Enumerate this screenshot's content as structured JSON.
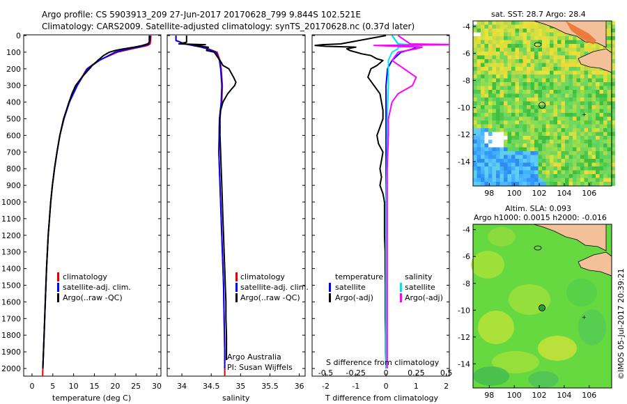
{
  "header": {
    "title_line1": "Argo profile: CS 5903913_209 27-Jun-2017 20170628_799 9.844S 102.521E",
    "title_line2": "Climatology: CARS2009. Satellite-adjusted climatology: synTS_20170628.nc (0.37d later)"
  },
  "colors": {
    "climatology": "#e00000",
    "satellite": "#0000ff",
    "argo": "#000000",
    "satellite_salinity": "#00e5ee",
    "argo_adj_salinity": "#ff00ff",
    "land": "#f4c09a"
  },
  "chart_data": [
    {
      "id": "temperature",
      "type": "line",
      "xlabel": "temperature (deg C)",
      "ylim": [
        2050,
        0
      ],
      "xlim": [
        -2,
        31
      ],
      "xticks": [
        "0",
        "5",
        "10",
        "15",
        "20",
        "25",
        "30"
      ],
      "yticks": [
        "0",
        "100",
        "200",
        "300",
        "400",
        "500",
        "600",
        "700",
        "800",
        "900",
        "1000",
        "1100",
        "1200",
        "1300",
        "1400",
        "1500",
        "1600",
        "1700",
        "1800",
        "1900",
        "2000"
      ],
      "legend": [
        "climatology",
        "satellite-adj. clim.",
        "Argo(..raw -QC)"
      ],
      "series": [
        {
          "name": "climatology",
          "pressure": [
            0,
            30,
            50,
            60,
            70,
            80,
            100,
            150,
            200,
            300,
            400,
            500,
            600,
            700,
            800,
            900,
            1000,
            1200,
            1400,
            1600,
            1800,
            2000,
            2050
          ],
          "values": [
            28.6,
            28.5,
            28.4,
            27.8,
            26,
            24,
            20.5,
            16,
            13.2,
            10.8,
            8.9,
            7.6,
            6.7,
            6,
            5.4,
            4.9,
            4.5,
            3.9,
            3.5,
            3.2,
            2.9,
            2.6,
            2.55
          ]
        },
        {
          "name": "satellite-adj. clim.",
          "pressure": [
            0,
            30,
            50,
            60,
            70,
            80,
            100,
            150,
            200,
            300,
            400,
            500,
            600,
            700,
            800,
            900,
            1000,
            1200,
            1400,
            1600,
            1800,
            2000
          ],
          "values": [
            28.4,
            28.3,
            28.1,
            27.2,
            25.5,
            23.2,
            20,
            16.2,
            13.3,
            10.9,
            9,
            7.7,
            6.7,
            6,
            5.4,
            4.9,
            4.5,
            3.9,
            3.5,
            3.2,
            2.9,
            2.6
          ]
        },
        {
          "name": "Argo(..raw -QC)",
          "pressure": [
            0,
            40,
            50,
            60,
            70,
            80,
            90,
            100,
            120,
            150,
            180,
            200,
            250,
            300,
            350,
            400,
            500,
            600,
            700,
            800,
            900,
            1000,
            1200,
            1400,
            1600,
            1800,
            2000
          ],
          "values": [
            28.2,
            28.2,
            27.8,
            26.5,
            24.5,
            22,
            20,
            18.6,
            17.2,
            15.8,
            14.5,
            13.8,
            12,
            10.5,
            9.6,
            8.9,
            7.6,
            6.7,
            6,
            5.4,
            4.9,
            4.5,
            3.9,
            3.5,
            3.2,
            2.9,
            2.6
          ]
        }
      ]
    },
    {
      "id": "salinity",
      "type": "line",
      "xlabel": "salinity",
      "ylim": [
        2050,
        0
      ],
      "xlim": [
        33.75,
        36.1
      ],
      "xticks": [
        "34",
        "34.5",
        "35",
        "35.5",
        "36"
      ],
      "legend": [
        "climatology",
        "satellite-adj. clim.",
        "Argo(..raw -QC)"
      ],
      "annotation": [
        "Argo Australia",
        "PI: Susan Wijffels"
      ],
      "series": [
        {
          "name": "climatology",
          "pressure": [
            0,
            30,
            50,
            70,
            80,
            100,
            150,
            200,
            300,
            400,
            500,
            700,
            900,
            1100,
            1300,
            1500,
            1700,
            1900,
            2050
          ],
          "values": [
            33.9,
            33.9,
            34.05,
            34.35,
            34.45,
            34.6,
            34.65,
            34.67,
            34.69,
            34.68,
            34.64,
            34.63,
            34.65,
            34.67,
            34.69,
            34.71,
            34.72,
            34.73,
            34.73
          ]
        },
        {
          "name": "satellite-adj. clim.",
          "pressure": [
            0,
            30,
            50,
            70,
            80,
            100,
            150,
            200,
            300,
            400,
            500,
            700,
            900,
            1100,
            1300,
            1500,
            1700,
            1900,
            2000
          ],
          "values": [
            33.9,
            33.9,
            34.05,
            34.33,
            34.43,
            34.58,
            34.64,
            34.66,
            34.68,
            34.67,
            34.64,
            34.63,
            34.65,
            34.67,
            34.69,
            34.71,
            34.72,
            34.73,
            34.73
          ]
        },
        {
          "name": "Argo(..raw -QC)",
          "pressure": [
            0,
            40,
            50,
            55,
            60,
            70,
            90,
            100,
            150,
            180,
            200,
            250,
            280,
            300,
            320,
            350,
            400,
            450,
            500,
            600,
            700,
            800,
            900,
            1000,
            1100,
            1200,
            1300,
            1400,
            1500,
            1600,
            1700,
            1800,
            1900,
            1950
          ],
          "values": [
            34.08,
            34.08,
            33.95,
            34.4,
            34.2,
            34.45,
            34.42,
            34.55,
            34.65,
            34.7,
            34.8,
            34.88,
            34.92,
            34.9,
            34.85,
            34.78,
            34.7,
            34.66,
            34.65,
            34.65,
            34.66,
            34.67,
            34.68,
            34.69,
            34.7,
            34.71,
            34.72,
            34.73,
            34.74,
            34.75,
            34.75,
            34.76,
            34.76,
            34.76
          ]
        }
      ]
    },
    {
      "id": "difference",
      "type": "line",
      "xlabel": "T difference from climatology",
      "xlabel_top": "S difference from climatology",
      "ylim": [
        2050,
        0
      ],
      "xlim": [
        -2.45,
        2.1
      ],
      "xticks_bottom": [
        "-2",
        "-1",
        "0",
        "1",
        "2"
      ],
      "xticks_top": [
        "-0.5",
        "-0.25",
        "0",
        "0.25",
        "0.5"
      ],
      "legend_left_title": "temperature",
      "legend_left": [
        "satellite",
        "Argo(-adj)"
      ],
      "legend_right_title": "salinity",
      "legend_right": [
        "satellite",
        "Argo(-adj)"
      ],
      "series": [
        {
          "name": "temperature satellite",
          "pressure": [
            0,
            50,
            60,
            70,
            80,
            100,
            150,
            200,
            300,
            500,
            1000,
            1500,
            2000
          ],
          "values": [
            0.2,
            0.4,
            0.8,
            1,
            0.9,
            0.5,
            0.2,
            0.05,
            0,
            0,
            0,
            0,
            0
          ]
        },
        {
          "name": "temperature Argo(-adj)",
          "pressure": [
            0,
            50,
            55,
            60,
            65,
            70,
            80,
            90,
            100,
            110,
            120,
            140,
            150,
            180,
            200,
            250,
            300,
            350,
            400,
            450,
            500,
            550,
            600,
            650,
            700,
            750,
            800,
            850,
            900,
            950,
            1000,
            1100,
            1200,
            1300,
            1400,
            1500,
            1600,
            1700,
            1800,
            1900,
            2000
          ],
          "values": [
            0,
            -1.5,
            -2.1,
            -2.35,
            -2.0,
            -1.0,
            -1.3,
            -1.2,
            -1.0,
            -0.8,
            -0.5,
            -0.3,
            -0.1,
            -0.3,
            -0.5,
            -0.6,
            -0.4,
            -0.2,
            -0.15,
            -0.1,
            -0.1,
            -0.2,
            -0.3,
            -0.25,
            -0.1,
            -0.15,
            -0.2,
            -0.15,
            -0.2,
            -0.1,
            -0.05,
            -0.05,
            -0.05,
            -0.03,
            -0.03,
            -0.02,
            -0.02,
            -0.02,
            -0.01,
            -0.01,
            0
          ]
        },
        {
          "name": "salinity satellite",
          "pressure": [
            0,
            50,
            60,
            70,
            80,
            100,
            150,
            200,
            300,
            500,
            700,
            1000,
            1500,
            2000
          ],
          "values": [
            0.05,
            0.1,
            0.3,
            0.1,
            0.1,
            0.05,
            0.02,
            0.02,
            0.02,
            0.01,
            0.01,
            0,
            0,
            0
          ]
        },
        {
          "name": "salinity Argo(-adj)",
          "pressure": [
            0,
            50,
            55,
            60,
            70,
            80,
            100,
            150,
            200,
            250,
            300,
            350,
            400,
            500,
            600,
            800,
            1000,
            1500,
            2000
          ],
          "values": [
            0.1,
            0.2,
            0.6,
            -0.1,
            0.3,
            0.25,
            0.1,
            0.05,
            0.15,
            0.25,
            0.22,
            0.1,
            0.05,
            0.02,
            0.02,
            0.01,
            0.01,
            0.01,
            0.01
          ]
        }
      ]
    }
  ],
  "maps": [
    {
      "id": "sst-map",
      "title": "sat. SST: 28.7 Argo: 28.4",
      "xticks": [
        "98",
        "100",
        "102",
        "104",
        "106"
      ],
      "yticks": [
        "-4",
        "-6",
        "-8",
        "-10",
        "-12",
        "-14"
      ]
    },
    {
      "id": "sla-map",
      "title_line1": "Altim. SLA: 0.093",
      "title_line2": "Argo h1000: 0.0015 h2000: -0.016",
      "xticks": [
        "98",
        "100",
        "102",
        "104",
        "106"
      ],
      "yticks": [
        "-4",
        "-6",
        "-8",
        "-10",
        "-12",
        "-14"
      ]
    }
  ],
  "footer": {
    "stamp": "©IMOS 05-Jul-2017 20:39:21"
  }
}
